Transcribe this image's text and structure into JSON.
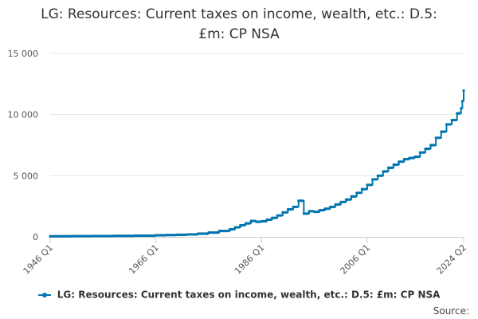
{
  "chart_data": {
    "type": "line",
    "title": "LG: Resources: Current taxes on income, wealth, etc.: D.5: £m: CP NSA",
    "title_lines": [
      "LG: Resources: Current taxes on income, wealth, etc.: D.5:",
      "£m: CP NSA"
    ],
    "x_tick_labels": [
      "1946 Q1",
      "1966 Q1",
      "1986 Q1",
      "2006 Q1",
      "2024 Q2"
    ],
    "y_tick_labels": [
      "0",
      "5 000",
      "10 000",
      "15 000"
    ],
    "y_ticks": [
      0,
      5000,
      10000,
      15000
    ],
    "ylim": [
      0,
      15000
    ],
    "x_range": [
      1946.0,
      2024.25
    ],
    "grid": true,
    "legend_position": "bottom",
    "series": [
      {
        "name": "LG: Resources: Current taxes on income, wealth, etc.: D.5: £m: CP NSA",
        "color": "#0075b0",
        "points": [
          [
            1946,
            50
          ],
          [
            1950,
            55
          ],
          [
            1954,
            65
          ],
          [
            1958,
            80
          ],
          [
            1962,
            100
          ],
          [
            1966,
            130
          ],
          [
            1968,
            150
          ],
          [
            1970,
            170
          ],
          [
            1972,
            200
          ],
          [
            1974,
            260
          ],
          [
            1976,
            350
          ],
          [
            1978,
            480
          ],
          [
            1980,
            620
          ],
          [
            1981,
            780
          ],
          [
            1982,
            950
          ],
          [
            1983,
            1100
          ],
          [
            1984,
            1300
          ],
          [
            1985,
            1230
          ],
          [
            1986,
            1270
          ],
          [
            1987,
            1400
          ],
          [
            1988,
            1550
          ],
          [
            1989,
            1750
          ],
          [
            1990,
            2000
          ],
          [
            1991,
            2250
          ],
          [
            1992,
            2450
          ],
          [
            1993,
            2950
          ],
          [
            1994,
            1900
          ],
          [
            1995,
            2100
          ],
          [
            1996,
            2050
          ],
          [
            1997,
            2180
          ],
          [
            1998,
            2300
          ],
          [
            1999,
            2450
          ],
          [
            2000,
            2650
          ],
          [
            2001,
            2850
          ],
          [
            2002,
            3050
          ],
          [
            2003,
            3300
          ],
          [
            2004,
            3600
          ],
          [
            2005,
            3900
          ],
          [
            2006,
            4250
          ],
          [
            2007,
            4700
          ],
          [
            2008,
            5000
          ],
          [
            2009,
            5350
          ],
          [
            2010,
            5650
          ],
          [
            2011,
            5900
          ],
          [
            2012,
            6150
          ],
          [
            2013,
            6350
          ],
          [
            2014,
            6450
          ],
          [
            2015,
            6550
          ],
          [
            2016,
            6900
          ],
          [
            2017,
            7200
          ],
          [
            2018,
            7500
          ],
          [
            2019,
            8100
          ],
          [
            2020,
            8600
          ],
          [
            2021,
            9200
          ],
          [
            2022,
            9550
          ],
          [
            2023,
            10100
          ],
          [
            2023.75,
            10500
          ],
          [
            2024.0,
            11100
          ],
          [
            2024.25,
            11950
          ]
        ]
      }
    ]
  },
  "legend": {
    "label": "LG: Resources: Current taxes on income, wealth, etc.: D.5: £m: CP NSA"
  },
  "footer": {
    "source_label": "Source:"
  }
}
